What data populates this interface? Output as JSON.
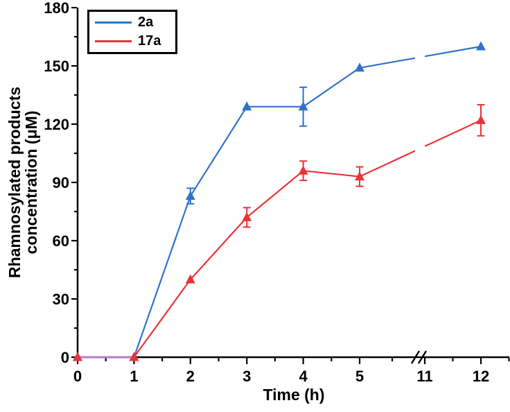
{
  "chart_data": {
    "type": "line",
    "title": "",
    "xlabel": "Time (h)",
    "ylabel": "Rhamnosylated products concentration (μM)",
    "ylabel_lines": [
      "Rhamnosylated products",
      "concentration (μM)"
    ],
    "ylim": [
      0,
      180
    ],
    "y_major_ticks": [
      0,
      30,
      60,
      90,
      120,
      150,
      180
    ],
    "y_minor_ticks": [
      15,
      45,
      75,
      105,
      135,
      165
    ],
    "x_major_ticks": [
      0,
      1,
      2,
      3,
      4,
      5,
      11,
      12
    ],
    "x_minor_ticks": [
      0.5,
      1.5,
      2.5,
      3.5,
      4.5,
      8,
      11.5,
      12.5
    ],
    "x_axis_break": {
      "between": [
        5,
        11
      ]
    },
    "grid": false,
    "legend_position": "top-left-inside",
    "series": [
      {
        "name": "2a",
        "color": "#2F72C8",
        "marker": "triangle-up",
        "x": [
          0,
          1,
          2,
          3,
          4,
          5,
          12
        ],
        "y": [
          0,
          0,
          83,
          129,
          129,
          149,
          160
        ],
        "yerr": [
          0,
          0,
          4,
          0,
          10,
          0,
          0
        ]
      },
      {
        "name": "17a",
        "color": "#EB3237",
        "marker": "triangle-up",
        "x": [
          0,
          1,
          2,
          3,
          4,
          5,
          12
        ],
        "y": [
          0,
          0,
          40,
          72,
          96,
          93,
          122
        ],
        "yerr": [
          0,
          0,
          0,
          5,
          5,
          5,
          8
        ]
      }
    ],
    "overlap_segment": {
      "x": [
        0,
        1
      ],
      "y": [
        0,
        0
      ],
      "color": "#B77FD6"
    }
  }
}
